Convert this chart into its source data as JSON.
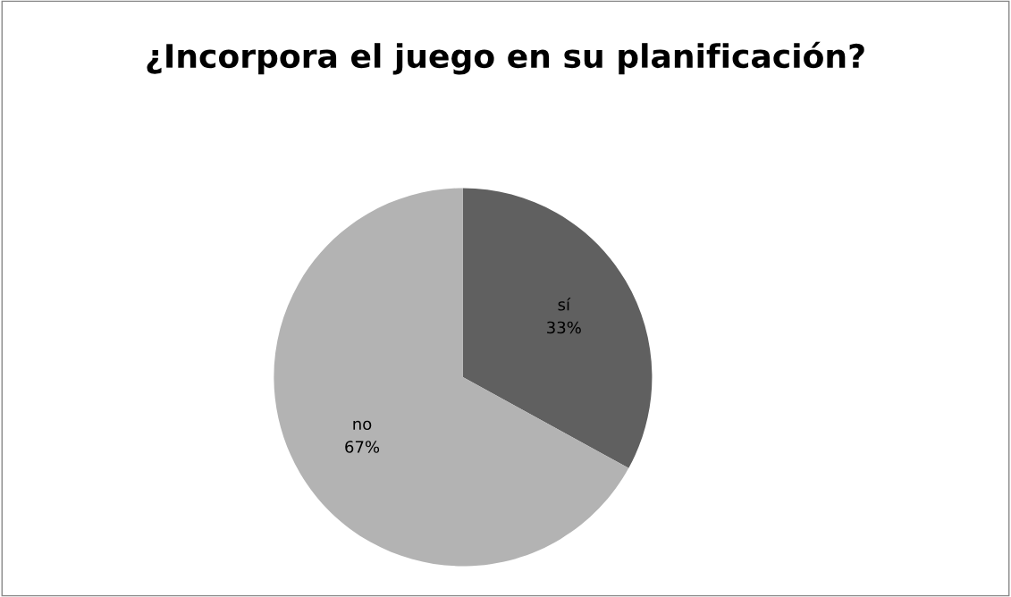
{
  "chart_data": {
    "type": "pie",
    "title": "¿Incorpora el juego en su planificación?",
    "categories": [
      "sí",
      "no"
    ],
    "values": [
      33,
      67
    ],
    "colors": [
      "#606060",
      "#b3b3b3"
    ],
    "value_labels": [
      "33%",
      "67%"
    ]
  }
}
